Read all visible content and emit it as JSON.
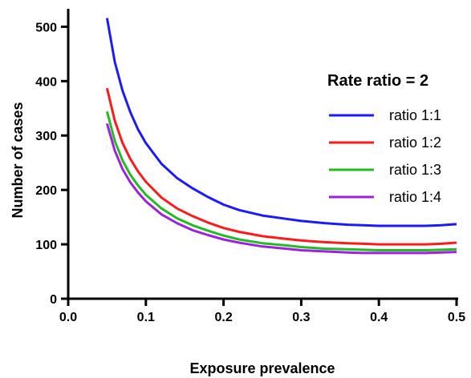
{
  "chart_data": {
    "type": "line",
    "title": "",
    "xlabel": "Exposure prevalence",
    "ylabel": "Number of cases",
    "xlim": [
      0.0,
      0.5
    ],
    "ylim": [
      0,
      530
    ],
    "x_ticks": [
      0.0,
      0.1,
      0.2,
      0.3,
      0.4,
      0.5
    ],
    "x_tick_labels": [
      "0.0",
      "0.1",
      "0.2",
      "0.3",
      "0.4",
      "0.5"
    ],
    "y_ticks": [
      0,
      100,
      200,
      300,
      400,
      500
    ],
    "y_tick_labels": [
      "0",
      "100",
      "200",
      "300",
      "400",
      "500"
    ],
    "grid": false,
    "legend_title": "Rate ratio = 2",
    "legend_position": "right",
    "x": [
      0.05,
      0.06,
      0.07,
      0.08,
      0.09,
      0.1,
      0.12,
      0.14,
      0.16,
      0.18,
      0.2,
      0.22,
      0.25,
      0.28,
      0.3,
      0.33,
      0.36,
      0.38,
      0.4,
      0.42,
      0.44,
      0.46,
      0.48,
      0.5
    ],
    "series": [
      {
        "name": "ratio 1:1",
        "color": "#1a1aff",
        "values": [
          516,
          435,
          382,
          343,
          311,
          286,
          248,
          222,
          203,
          187,
          173,
          163,
          153,
          147,
          143,
          139,
          136,
          135,
          134,
          134,
          134,
          134,
          135,
          137
        ]
      },
      {
        "name": "ratio 1:2",
        "color": "#ff1a1a",
        "values": [
          387,
          327,
          286,
          257,
          234,
          215,
          186,
          166,
          152,
          140,
          130,
          123,
          115,
          110,
          107,
          104,
          102,
          101,
          100,
          100,
          100,
          100,
          101,
          103
        ]
      },
      {
        "name": "ratio 1:3",
        "color": "#22bb22",
        "values": [
          344,
          290,
          254,
          228,
          208,
          191,
          166,
          148,
          135,
          125,
          116,
          109,
          102,
          98,
          95,
          92,
          91,
          90,
          89,
          89,
          89,
          89,
          90,
          91
        ]
      },
      {
        "name": "ratio 1:4",
        "color": "#a020e0",
        "values": [
          322,
          272,
          238,
          214,
          195,
          179,
          155,
          139,
          126,
          117,
          109,
          103,
          96,
          92,
          89,
          87,
          85,
          84,
          84,
          84,
          84,
          84,
          85,
          86
        ]
      }
    ]
  }
}
